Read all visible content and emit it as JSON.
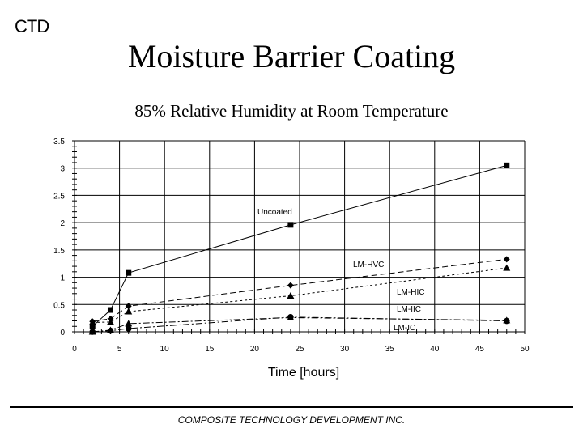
{
  "logo": "CTD",
  "title": "Moisture Barrier Coating",
  "subtitle": "85% Relative Humidity at Room Temperature",
  "footer": "COMPOSITE TECHNOLOGY DEVELOPMENT INC.",
  "chart_data": {
    "type": "line",
    "xlabel": "Time [hours]",
    "ylabel": "",
    "xlim": [
      0,
      50
    ],
    "ylim": [
      0,
      3.5
    ],
    "xticks": [
      0,
      5,
      10,
      15,
      20,
      25,
      30,
      35,
      40,
      45,
      50
    ],
    "xtick_labels": [
      "0",
      "5",
      "10",
      "15",
      "20",
      "25",
      "30",
      "35",
      "40",
      "45",
      "50"
    ],
    "yticks": [
      0,
      0.5,
      1,
      1.5,
      2,
      2.5,
      3,
      3.5
    ],
    "ytick_labels": [
      "0",
      "0.5",
      "1",
      "1.5",
      "2",
      "2.5",
      "3",
      "3.5"
    ],
    "grid": true,
    "series": [
      {
        "name": "Uncoated",
        "marker": "square",
        "dash": "solid",
        "x": [
          2,
          4,
          6,
          24,
          48
        ],
        "y": [
          0.1,
          0.4,
          1.08,
          1.96,
          3.05
        ]
      },
      {
        "name": "LM-HVC",
        "marker": "diamond",
        "dash": "long",
        "x": [
          2,
          4,
          6,
          24,
          48
        ],
        "y": [
          0.19,
          0.24,
          0.47,
          0.85,
          1.33
        ]
      },
      {
        "name": "LM-HIC",
        "marker": "triangle",
        "dash": "short",
        "x": [
          2,
          4,
          6,
          24,
          48
        ],
        "y": [
          0.17,
          0.18,
          0.37,
          0.66,
          1.17
        ]
      },
      {
        "name": "LM-IIC",
        "marker": "triangle",
        "dash": "dashdot",
        "x": [
          2,
          4,
          6,
          24,
          48
        ],
        "y": [
          0.0,
          0.03,
          0.15,
          0.26,
          0.21
        ]
      },
      {
        "name": "LM-IC",
        "marker": "circle",
        "dash": "dashdot",
        "x": [
          2,
          4,
          6,
          24,
          48
        ],
        "y": [
          0.0,
          0.02,
          0.06,
          0.27,
          0.2
        ]
      }
    ]
  }
}
